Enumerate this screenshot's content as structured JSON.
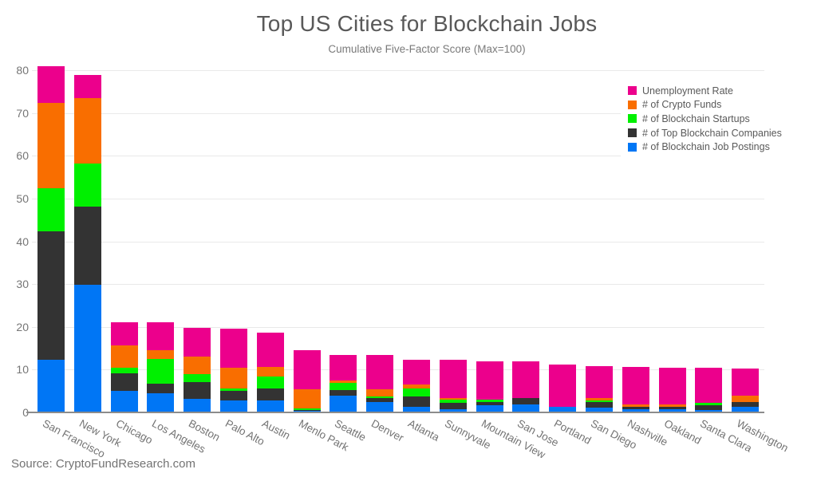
{
  "chart_data": {
    "type": "bar",
    "stacked": true,
    "title": "Top US Cities for Blockchain Jobs",
    "subtitle": "Cumulative Five-Factor Score (Max=100)",
    "categories": [
      "San Francisco",
      "New York",
      "Chicago",
      "Los Angeles",
      "Boston",
      "Palo Alto",
      "Austin",
      "Menlo Park",
      "Seattle",
      "Denver",
      "Atlanta",
      "Sunnyvale",
      "Mountain View",
      "San Jose",
      "Portland",
      "San Diego",
      "Nashville",
      "Oakland",
      "Santa Clara",
      "Washington"
    ],
    "series": [
      {
        "name": "Unemployment Rate",
        "color": "#EC008C",
        "values": [
          8.7,
          5.3,
          5.5,
          6.6,
          6.7,
          9.0,
          8.0,
          9.1,
          6.1,
          8.0,
          5.9,
          9.1,
          8.9,
          8.6,
          9.8,
          7.5,
          8.7,
          8.6,
          8.2,
          6.4
        ]
      },
      {
        "name": "# of Crypto Funds",
        "color": "#F96E00",
        "values": [
          19.9,
          15.4,
          5.1,
          2.0,
          4.2,
          4.9,
          2.2,
          4.5,
          0.5,
          1.6,
          0.9,
          0.4,
          0.0,
          0.0,
          0.0,
          0.6,
          0.6,
          0.6,
          0.0,
          1.5
        ]
      },
      {
        "name": "# of Blockchain Startups",
        "color": "#00F000",
        "values": [
          10.1,
          9.9,
          1.4,
          5.8,
          1.8,
          0.6,
          2.8,
          0.4,
          1.6,
          0.4,
          1.8,
          0.6,
          0.5,
          0.0,
          0.0,
          0.4,
          0.0,
          0.0,
          0.6,
          0.0
        ]
      },
      {
        "name": "# of Top Blockchain Companies",
        "color": "#333333",
        "values": [
          30.0,
          18.3,
          4.0,
          2.2,
          3.9,
          2.2,
          2.8,
          0.1,
          1.4,
          1.0,
          2.4,
          1.5,
          0.9,
          1.4,
          0.0,
          1.3,
          0.6,
          0.5,
          1.1,
          1.0
        ]
      },
      {
        "name": "# of Blockchain Job Postings",
        "color": "#0076F5",
        "values": [
          12.3,
          29.9,
          5.1,
          4.5,
          3.2,
          2.8,
          2.8,
          0.4,
          3.9,
          2.4,
          1.4,
          0.8,
          1.6,
          1.9,
          1.4,
          1.1,
          0.7,
          0.8,
          0.6,
          1.4
        ]
      }
    ],
    "totals": [
      81.0,
      78.8,
      21.1,
      21.1,
      19.8,
      19.5,
      18.6,
      14.5,
      13.5,
      13.4,
      12.4,
      12.4,
      11.9,
      11.9,
      11.2,
      10.9,
      10.6,
      10.5,
      10.5,
      10.3
    ],
    "ylim": [
      0,
      80
    ],
    "yticks": [
      0,
      10,
      20,
      30,
      40,
      50,
      60,
      70,
      80
    ],
    "grid": true,
    "legend_position": "top-right"
  },
  "source": "Source: CryptoFundResearch.com",
  "colors": {
    "title_text": "#595959",
    "axis_text": "#757575",
    "gridline": "#e9e9e9",
    "axis_line": "#8c8c8c",
    "background": "#ffffff"
  }
}
